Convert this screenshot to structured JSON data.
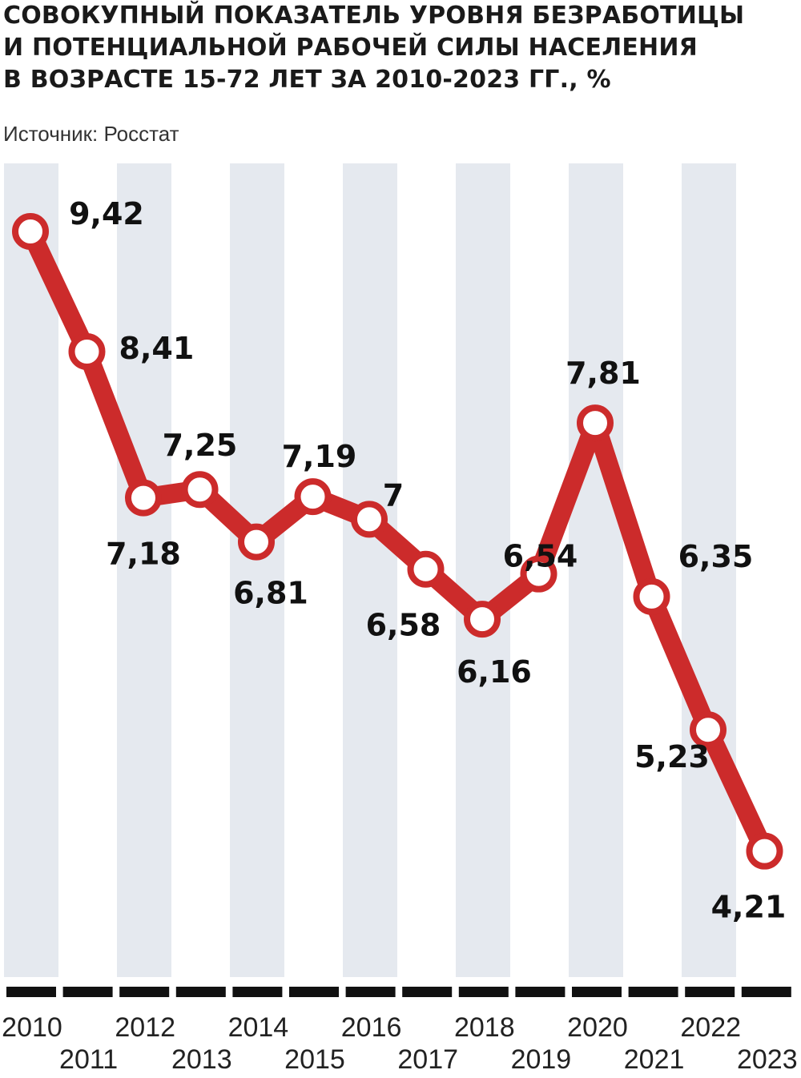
{
  "title": "СОВОКУПНЫЙ ПОКАЗАТЕЛЬ УРОВНЯ БЕЗРАБОТИЦЫ\nИ ПОТЕНЦИАЛЬНОЙ РАБОЧЕЙ СИЛЫ НАСЕЛЕНИЯ\nВ ВОЗРАСТЕ 15-72 ЛЕТ ЗА 2010-2023 ГГ., %",
  "source": "Источник: Росстат",
  "colors": {
    "line": "#cc2b2b",
    "band": "#e5e9ef",
    "axis": "#111111"
  },
  "chart_data": {
    "type": "line",
    "categories": [
      "2010",
      "2011",
      "2012",
      "2013",
      "2014",
      "2015",
      "2016",
      "2017",
      "2018",
      "2019",
      "2020",
      "2021",
      "2022",
      "2023"
    ],
    "values": [
      9.42,
      8.41,
      7.18,
      7.25,
      6.81,
      7.19,
      7.0,
      6.58,
      6.16,
      6.54,
      7.81,
      6.35,
      5.23,
      4.21
    ],
    "value_labels": [
      "9,42",
      "8,41",
      "7,18",
      "7,25",
      "6,81",
      "7,19",
      "7",
      "6,58",
      "6,16",
      "6,54",
      "7,81",
      "6,35",
      "5,23",
      "4,21"
    ],
    "grid": false,
    "legend": "none"
  }
}
